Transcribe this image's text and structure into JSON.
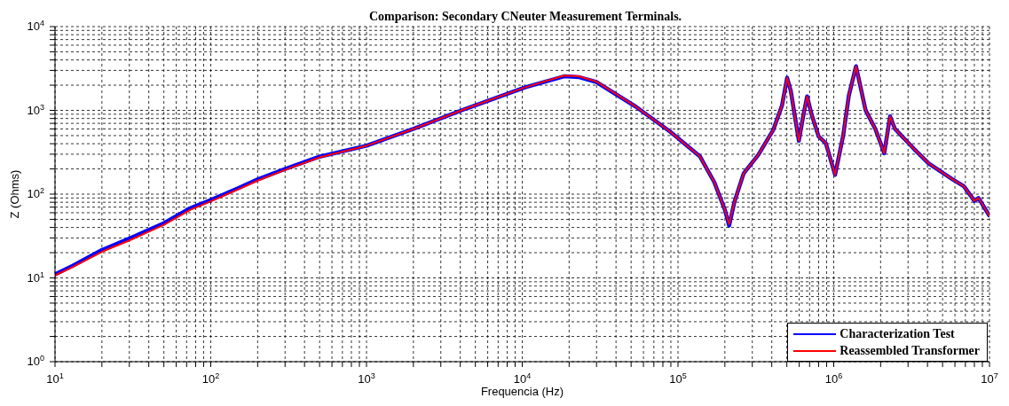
{
  "chart_data": {
    "type": "line",
    "title": "Comparison: Secondary CNeuter Measurement Terminals.",
    "xlabel": "Frequencia (Hz)",
    "ylabel": "Z (Ohms)",
    "log": "xy",
    "grid": true,
    "legend": "bottom right",
    "xlim": [
      10,
      10000000
    ],
    "ylim": [
      1,
      10000
    ],
    "xticks": [
      {
        "value": 10,
        "label": "10$^{1}$"
      },
      {
        "value": 20,
        "label": null
      },
      {
        "value": 30,
        "label": null
      },
      {
        "value": 40,
        "label": null
      },
      {
        "value": 50,
        "label": null
      },
      {
        "value": 60,
        "label": null
      },
      {
        "value": 70,
        "label": null
      },
      {
        "value": 80,
        "label": null
      },
      {
        "value": 90,
        "label": null
      },
      {
        "value": 100,
        "label": "10$^{2}$"
      },
      {
        "value": 200,
        "label": null
      },
      {
        "value": 300,
        "label": null
      },
      {
        "value": 400,
        "label": null
      },
      {
        "value": 500,
        "label": null
      },
      {
        "value": 600,
        "label": null
      },
      {
        "value": 700,
        "label": null
      },
      {
        "value": 800,
        "label": null
      },
      {
        "value": 900,
        "label": null
      },
      {
        "value": 1000,
        "label": "10$^{3}$"
      },
      {
        "value": 2000,
        "label": null
      },
      {
        "value": 3000,
        "label": null
      },
      {
        "value": 4000,
        "label": null
      },
      {
        "value": 5000,
        "label": null
      },
      {
        "value": 6000,
        "label": null
      },
      {
        "value": 7000,
        "label": null
      },
      {
        "value": 8000,
        "label": null
      },
      {
        "value": 9000,
        "label": null
      },
      {
        "value": 10000,
        "label": "10$^{4}$"
      },
      {
        "value": 20000,
        "label": null
      },
      {
        "value": 30000,
        "label": null
      },
      {
        "value": 40000,
        "label": null
      },
      {
        "value": 50000,
        "label": null
      },
      {
        "value": 60000,
        "label": null
      },
      {
        "value": 70000,
        "label": null
      },
      {
        "value": 80000,
        "label": null
      },
      {
        "value": 90000,
        "label": null
      },
      {
        "value": 100000,
        "label": "10$^{5}$"
      },
      {
        "value": 200000,
        "label": null
      },
      {
        "value": 300000,
        "label": null
      },
      {
        "value": 400000,
        "label": null
      },
      {
        "value": 500000,
        "label": null
      },
      {
        "value": 600000,
        "label": null
      },
      {
        "value": 700000,
        "label": null
      },
      {
        "value": 800000,
        "label": null
      },
      {
        "value": 900000,
        "label": null
      },
      {
        "value": 1000000,
        "label": "10$^{6}$"
      },
      {
        "value": 2000000,
        "label": null
      },
      {
        "value": 3000000,
        "label": null
      },
      {
        "value": 4000000,
        "label": null
      },
      {
        "value": 5000000,
        "label": null
      },
      {
        "value": 6000000,
        "label": null
      },
      {
        "value": 7000000,
        "label": null
      },
      {
        "value": 8000000,
        "label": null
      },
      {
        "value": 9000000,
        "label": null
      },
      {
        "value": 10000000,
        "label": "10$^{7}$"
      }
    ],
    "yticks": [
      {
        "value": 1,
        "label": "10$^{0}$"
      },
      {
        "value": 2,
        "label": null
      },
      {
        "value": 3,
        "label": null
      },
      {
        "value": 4,
        "label": null
      },
      {
        "value": 5,
        "label": null
      },
      {
        "value": 6,
        "label": null
      },
      {
        "value": 7,
        "label": null
      },
      {
        "value": 8,
        "label": null
      },
      {
        "value": 9,
        "label": null
      },
      {
        "value": 10,
        "label": "10$^{1}$"
      },
      {
        "value": 20,
        "label": null
      },
      {
        "value": 30,
        "label": null
      },
      {
        "value": 40,
        "label": null
      },
      {
        "value": 50,
        "label": null
      },
      {
        "value": 60,
        "label": null
      },
      {
        "value": 70,
        "label": null
      },
      {
        "value": 80,
        "label": null
      },
      {
        "value": 90,
        "label": null
      },
      {
        "value": 100,
        "label": "10$^{2}$"
      },
      {
        "value": 200,
        "label": null
      },
      {
        "value": 300,
        "label": null
      },
      {
        "value": 400,
        "label": null
      },
      {
        "value": 500,
        "label": null
      },
      {
        "value": 600,
        "label": null
      },
      {
        "value": 700,
        "label": null
      },
      {
        "value": 800,
        "label": null
      },
      {
        "value": 900,
        "label": null
      },
      {
        "value": 1000,
        "label": "10$^{3}$"
      },
      {
        "value": 2000,
        "label": null
      },
      {
        "value": 3000,
        "label": null
      },
      {
        "value": 4000,
        "label": null
      },
      {
        "value": 5000,
        "label": null
      },
      {
        "value": 6000,
        "label": null
      },
      {
        "value": 7000,
        "label": null
      },
      {
        "value": 8000,
        "label": null
      },
      {
        "value": 9000,
        "label": null
      },
      {
        "value": 10000,
        "label": "10$^{4}$"
      }
    ],
    "series": [
      {
        "name": "Characterization Test",
        "color": "#0000ff",
        "x": [
          10,
          13,
          20,
          30,
          50,
          74,
          100,
          150,
          200,
          300,
          500,
          1000,
          2000,
          4400,
          10500,
          18600,
          23000,
          29900,
          53500,
          89000,
          138000,
          171000,
          200000,
          213000,
          230000,
          264000,
          328000,
          408000,
          465000,
          502000,
          530000,
          597000,
          640000,
          675000,
          720000,
          800000,
          890000,
          1020000,
          1150000,
          1250000,
          1390000,
          1600000,
          1850000,
          2110000,
          2300000,
          2470000,
          3280000,
          4070000,
          5770000,
          6850000,
          8000000,
          8500000,
          9940000
        ],
        "values": [
          11,
          14,
          21.5,
          29.5,
          45,
          68,
          85,
          118,
          150,
          200,
          280,
          378,
          600,
          1056,
          1890,
          2550,
          2500,
          2180,
          1110,
          557,
          284,
          139,
          65,
          42,
          80,
          177,
          295,
          579,
          1135,
          2450,
          1700,
          433,
          900,
          1470,
          900,
          488,
          405,
          170,
          500,
          1500,
          3360,
          1010,
          600,
          308,
          848,
          603,
          346,
          233,
          151,
          124,
          83,
          90,
          56
        ]
      },
      {
        "name": "Reassembled Transformer",
        "color": "#ff0000",
        "x": [
          10,
          13,
          20,
          30,
          50,
          74,
          100,
          150,
          200,
          300,
          500,
          1000,
          2000,
          4400,
          10500,
          18600,
          23000,
          29900,
          53500,
          89000,
          138000,
          171000,
          200000,
          213000,
          230000,
          264000,
          328000,
          408000,
          465000,
          502000,
          530000,
          597000,
          640000,
          675000,
          720000,
          800000,
          890000,
          1020000,
          1150000,
          1250000,
          1390000,
          1600000,
          1850000,
          2110000,
          2300000,
          2470000,
          3280000,
          4070000,
          5770000,
          6850000,
          8000000,
          8500000,
          9940000
        ],
        "values": [
          10.7,
          13.5,
          20.5,
          28,
          43,
          65,
          82,
          114,
          145,
          195,
          275,
          378,
          600,
          1056,
          1890,
          2600,
          2550,
          2210,
          1110,
          557,
          284,
          139,
          65,
          44,
          80,
          177,
          295,
          579,
          1135,
          2450,
          1700,
          433,
          900,
          1470,
          900,
          488,
          405,
          170,
          500,
          1500,
          3360,
          1010,
          600,
          308,
          848,
          603,
          346,
          233,
          151,
          124,
          83,
          90,
          56
        ]
      }
    ]
  }
}
